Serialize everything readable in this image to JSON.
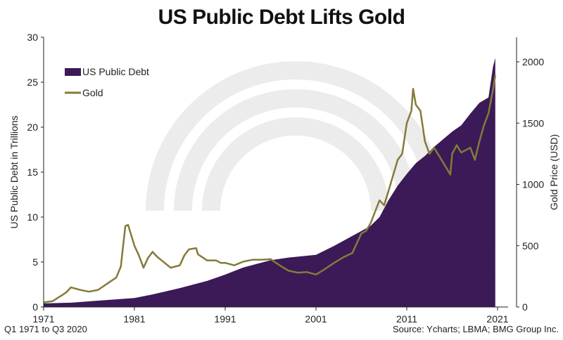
{
  "chart_data": {
    "type": "area+line",
    "title": "US Public Debt Lifts Gold",
    "xlabel": "",
    "ylabel": "US Public Debt in Trillions",
    "y2label": "Gold Price (USD)",
    "xlim": [
      1971,
      2021
    ],
    "ylim": [
      0,
      30
    ],
    "y2lim": [
      0,
      2200
    ],
    "xticks": [
      "1971",
      "1981",
      "1991",
      "2001",
      "2011",
      "2021"
    ],
    "yticks": [
      "0",
      "5",
      "10",
      "15",
      "20",
      "25",
      "30"
    ],
    "y2ticks": [
      "0",
      "500",
      "1000",
      "1500",
      "2000"
    ],
    "legend": {
      "placement": "top-left",
      "entries": [
        "US Public Debt",
        "Gold"
      ]
    },
    "colors": {
      "debt": "#3b1a57",
      "gold": "#857a3a"
    },
    "series": [
      {
        "name": "US Public Debt",
        "axis": "left",
        "type": "area",
        "x": [
          1971,
          1974,
          1977,
          1981,
          1983,
          1986,
          1989,
          1991,
          1993,
          1996,
          1998,
          2001,
          2003,
          2005,
          2007,
          2008,
          2009,
          2010,
          2011,
          2012,
          2013,
          2014,
          2016,
          2017,
          2018,
          2019,
          2020,
          2020.25,
          2020.5,
          2020.75
        ],
        "y": [
          0.4,
          0.48,
          0.7,
          1.0,
          1.4,
          2.1,
          2.9,
          3.6,
          4.4,
          5.2,
          5.5,
          5.8,
          6.8,
          7.9,
          9.0,
          10.0,
          11.9,
          13.5,
          14.8,
          16.0,
          16.8,
          17.8,
          19.5,
          20.2,
          21.5,
          22.7,
          23.3,
          25.0,
          26.7,
          27.7
        ]
      },
      {
        "name": "Gold",
        "axis": "right",
        "type": "line",
        "x": [
          1971,
          1972,
          1973,
          1973.5,
          1974,
          1974.5,
          1975,
          1976,
          1977,
          1978,
          1979,
          1979.5,
          1980,
          1980.3,
          1981,
          1981.5,
          1982,
          1982.5,
          1983,
          1983.5,
          1984,
          1985,
          1986,
          1986.5,
          1987,
          1987.8,
          1988,
          1989,
          1990,
          1990.5,
          1991,
          1992,
          1993,
          1994,
          1995,
          1996,
          1997,
          1998,
          1999,
          2000,
          2001,
          2002,
          2003,
          2004,
          2005,
          2006,
          2006.5,
          2007,
          2008,
          2008.5,
          2009,
          2010,
          2010.5,
          2011,
          2011.5,
          2011.7,
          2012,
          2012.5,
          2013,
          2013.5,
          2014,
          2015,
          2015.8,
          2016,
          2016.5,
          2017,
          2018,
          2018.5,
          2019,
          2019.5,
          2020,
          2020.5,
          2020.75
        ],
        "y": [
          37,
          48,
          95,
          120,
          160,
          150,
          140,
          125,
          140,
          190,
          240,
          330,
          660,
          670,
          500,
          420,
          320,
          400,
          450,
          410,
          380,
          320,
          340,
          420,
          470,
          480,
          430,
          380,
          380,
          360,
          360,
          340,
          370,
          385,
          385,
          390,
          340,
          295,
          280,
          285,
          265,
          310,
          360,
          405,
          440,
          600,
          620,
          680,
          870,
          830,
          950,
          1200,
          1250,
          1500,
          1600,
          1780,
          1650,
          1600,
          1350,
          1250,
          1300,
          1180,
          1080,
          1250,
          1320,
          1260,
          1300,
          1200,
          1350,
          1480,
          1580,
          1770,
          1890
        ]
      }
    ],
    "footnote_left": "Q1 1971 to Q3 2020",
    "footnote_right": "Source: Ycharts; LBMA; BMG Group Inc."
  }
}
